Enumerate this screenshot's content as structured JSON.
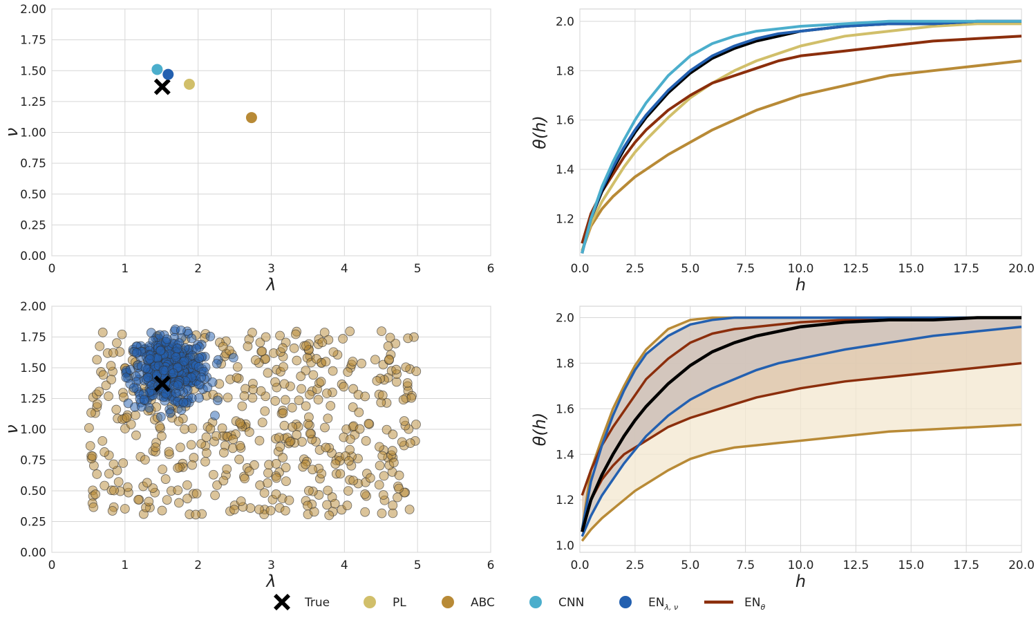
{
  "legend": {
    "items": [
      {
        "label": "True",
        "color": "#000000",
        "marker": "x-marker"
      },
      {
        "label": "PL",
        "color": "#d1bf6a",
        "marker": "dot-marker"
      },
      {
        "label": "ABC",
        "color": "#b88a36",
        "marker": "dot-marker"
      },
      {
        "label": "CNN",
        "color": "#4baecc",
        "marker": "dot-marker"
      },
      {
        "label": "EN",
        "sub": "λ, ν",
        "color": "#2360b0",
        "marker": "dot-marker"
      },
      {
        "label": "EN",
        "sub": "θ",
        "color": "#8b2e0c",
        "marker": "line-marker"
      }
    ]
  },
  "chart_data": [
    {
      "type": "scatter",
      "xlabel": "λ",
      "ylabel": "ν",
      "xlim": [
        0,
        6
      ],
      "ylim": [
        0,
        2
      ],
      "xticks": [
        "0",
        "1",
        "2",
        "3",
        "4",
        "5",
        "6"
      ],
      "yticks": [
        "0.00",
        "0.25",
        "0.50",
        "0.75",
        "1.00",
        "1.25",
        "1.50",
        "1.75",
        "2.00"
      ],
      "grid": true,
      "series": [
        {
          "name": "True",
          "marker": "x",
          "color": "#000000",
          "points": [
            [
              1.51,
              1.37
            ]
          ]
        },
        {
          "name": "PL",
          "marker": "o",
          "color": "#d1bf6a",
          "points": [
            [
              1.88,
              1.39
            ]
          ]
        },
        {
          "name": "ABC",
          "marker": "o",
          "color": "#b88a36",
          "points": [
            [
              2.73,
              1.12
            ]
          ]
        },
        {
          "name": "CNN",
          "marker": "o",
          "color": "#4baecc",
          "points": [
            [
              1.44,
              1.51
            ]
          ]
        },
        {
          "name": "EN λ,ν",
          "marker": "o",
          "color": "#2360b0",
          "points": [
            [
              1.59,
              1.47
            ]
          ]
        }
      ]
    },
    {
      "type": "line",
      "xlabel": "h",
      "ylabel": "θ(h)",
      "xlim": [
        0,
        20
      ],
      "ylim": [
        1.05,
        2.05
      ],
      "xticks": [
        "0.0",
        "2.5",
        "5.0",
        "7.5",
        "10.0",
        "12.5",
        "15.0",
        "17.5",
        "20.0"
      ],
      "yticks": [
        "1.2",
        "1.4",
        "1.6",
        "1.8",
        "2.0"
      ],
      "grid": true,
      "x": [
        0.1,
        0.5,
        1,
        1.5,
        2,
        2.5,
        3,
        4,
        5,
        6,
        7,
        8,
        9,
        10,
        12,
        14,
        16,
        18,
        20
      ],
      "series": [
        {
          "name": "ABC",
          "color": "#b88a36",
          "values": [
            1.07,
            1.17,
            1.24,
            1.29,
            1.33,
            1.37,
            1.4,
            1.46,
            1.51,
            1.56,
            1.6,
            1.64,
            1.67,
            1.7,
            1.74,
            1.78,
            1.8,
            1.82,
            1.84
          ]
        },
        {
          "name": "PL",
          "color": "#d1bf6a",
          "values": [
            1.07,
            1.18,
            1.27,
            1.34,
            1.41,
            1.47,
            1.52,
            1.61,
            1.69,
            1.75,
            1.8,
            1.84,
            1.87,
            1.9,
            1.94,
            1.96,
            1.98,
            1.99,
            1.99
          ]
        },
        {
          "name": "EN θ",
          "color": "#8b2e0c",
          "values": [
            1.1,
            1.22,
            1.31,
            1.38,
            1.45,
            1.51,
            1.56,
            1.64,
            1.7,
            1.75,
            1.78,
            1.81,
            1.84,
            1.86,
            1.88,
            1.9,
            1.92,
            1.93,
            1.94
          ]
        },
        {
          "name": "True",
          "color": "#000000",
          "values": [
            1.06,
            1.2,
            1.31,
            1.4,
            1.48,
            1.55,
            1.61,
            1.71,
            1.79,
            1.85,
            1.89,
            1.92,
            1.94,
            1.96,
            1.98,
            1.99,
            1.99,
            2.0,
            2.0
          ]
        },
        {
          "name": "EN λ,ν",
          "color": "#2360b0",
          "values": [
            1.06,
            1.2,
            1.32,
            1.41,
            1.49,
            1.56,
            1.62,
            1.72,
            1.8,
            1.86,
            1.9,
            1.93,
            1.95,
            1.96,
            1.98,
            1.99,
            1.99,
            2.0,
            2.0
          ]
        },
        {
          "name": "CNN",
          "color": "#4baecc",
          "values": [
            1.06,
            1.2,
            1.33,
            1.43,
            1.52,
            1.6,
            1.67,
            1.78,
            1.86,
            1.91,
            1.94,
            1.96,
            1.97,
            1.98,
            1.99,
            2.0,
            2.0,
            2.0,
            2.0
          ]
        }
      ]
    },
    {
      "type": "scatter",
      "xlabel": "λ",
      "ylabel": "ν",
      "xlim": [
        0,
        6
      ],
      "ylim": [
        0,
        2
      ],
      "xticks": [
        "0",
        "1",
        "2",
        "3",
        "4",
        "5",
        "6"
      ],
      "yticks": [
        "0.00",
        "0.25",
        "0.50",
        "0.75",
        "1.00",
        "1.25",
        "1.50",
        "1.75",
        "2.00"
      ],
      "grid": true,
      "series": [
        {
          "name": "ABC",
          "marker": "o",
          "color": "#b88a36",
          "n": 500,
          "x_range": [
            0.5,
            5.0
          ],
          "y_range": [
            0.3,
            1.8
          ]
        },
        {
          "name": "EN λ,ν",
          "marker": "o",
          "color": "#2360b0",
          "n": 420,
          "center": [
            1.6,
            1.47
          ],
          "spread": [
            0.28,
            0.14
          ]
        },
        {
          "name": "True",
          "marker": "x",
          "color": "#000000",
          "points": [
            [
              1.51,
              1.37
            ]
          ]
        }
      ]
    },
    {
      "type": "area",
      "xlabel": "h",
      "ylabel": "θ(h)",
      "xlim": [
        0,
        20
      ],
      "ylim": [
        0.97,
        2.05
      ],
      "xticks": [
        "0.0",
        "2.5",
        "5.0",
        "7.5",
        "10.0",
        "12.5",
        "15.0",
        "17.5",
        "20.0"
      ],
      "yticks": [
        "1.0",
        "1.2",
        "1.4",
        "1.6",
        "1.8",
        "2.0"
      ],
      "grid": true,
      "x": [
        0.1,
        0.5,
        1,
        1.5,
        2,
        2.5,
        3,
        4,
        5,
        6,
        7,
        8,
        9,
        10,
        12,
        14,
        16,
        18,
        20
      ],
      "bands": [
        {
          "name": "ABC",
          "color": "#b88a36",
          "lower": [
            1.02,
            1.07,
            1.12,
            1.16,
            1.2,
            1.24,
            1.27,
            1.33,
            1.38,
            1.41,
            1.43,
            1.44,
            1.45,
            1.46,
            1.48,
            1.5,
            1.51,
            1.52,
            1.53
          ],
          "upper": [
            1.07,
            1.33,
            1.47,
            1.6,
            1.7,
            1.79,
            1.86,
            1.95,
            1.99,
            2.0,
            2.0,
            2.0,
            2.0,
            2.0,
            2.0,
            2.0,
            2.0,
            2.0,
            2.0
          ]
        },
        {
          "name": "EN θ",
          "color": "#8b2e0c",
          "lower": [
            1.06,
            1.2,
            1.29,
            1.35,
            1.4,
            1.43,
            1.46,
            1.52,
            1.56,
            1.59,
            1.62,
            1.65,
            1.67,
            1.69,
            1.72,
            1.74,
            1.76,
            1.78,
            1.8
          ],
          "upper": [
            1.22,
            1.33,
            1.44,
            1.52,
            1.59,
            1.66,
            1.73,
            1.82,
            1.89,
            1.93,
            1.95,
            1.96,
            1.97,
            1.98,
            1.99,
            1.99,
            1.99,
            2.0,
            2.0
          ]
        },
        {
          "name": "EN λ,ν",
          "color": "#2360b0",
          "lower": [
            1.04,
            1.13,
            1.22,
            1.29,
            1.36,
            1.42,
            1.48,
            1.57,
            1.64,
            1.69,
            1.73,
            1.77,
            1.8,
            1.82,
            1.86,
            1.89,
            1.92,
            1.94,
            1.96
          ],
          "upper": [
            1.07,
            1.28,
            1.44,
            1.57,
            1.68,
            1.77,
            1.84,
            1.92,
            1.97,
            1.99,
            2.0,
            2.0,
            2.0,
            2.0,
            2.0,
            2.0,
            2.0,
            2.0,
            2.0
          ]
        }
      ],
      "series": [
        {
          "name": "True",
          "color": "#000000",
          "values": [
            1.06,
            1.2,
            1.31,
            1.4,
            1.48,
            1.55,
            1.61,
            1.71,
            1.79,
            1.85,
            1.89,
            1.92,
            1.94,
            1.96,
            1.98,
            1.99,
            1.99,
            2.0,
            2.0
          ]
        }
      ]
    }
  ]
}
